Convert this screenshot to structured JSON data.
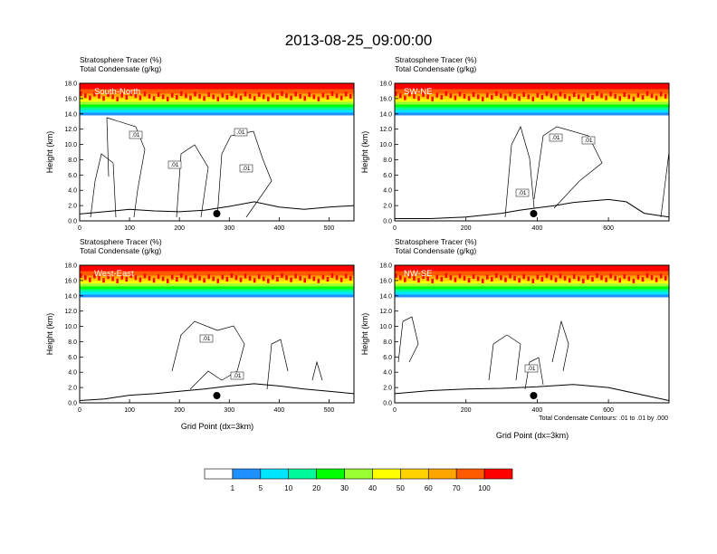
{
  "figure_title": "2013-08-25_09:00:00",
  "header_line1": "Stratosphere Tracer   (%)",
  "header_line2": "Total Condensate   (g/kg)",
  "x_axis_title": "Grid Point (dx=3km)",
  "contour_note": "Total Condensate Contours: .01 to .01 by .000",
  "colors": {
    "level_colors": [
      "#ffffff",
      "#1e90ff",
      "#00e5ff",
      "#00fa9a",
      "#00ff00",
      "#9aff33",
      "#ffff00",
      "#ffd200",
      "#ffa500",
      "#ff5a00",
      "#ff0000"
    ],
    "terrain_line": "#000000"
  },
  "colorbar": {
    "labels": [
      "1",
      "5",
      "10",
      "20",
      "30",
      "40",
      "50",
      "60",
      "70",
      "100"
    ]
  },
  "chart_data": [
    {
      "type": "heatmap",
      "panel": "South-North",
      "ylabel": "Height (km)",
      "xlim": [
        0,
        550
      ],
      "ylim": [
        0,
        18
      ],
      "xticks": [
        0,
        100,
        200,
        300,
        400,
        500
      ],
      "yticks": [
        0.0,
        2.0,
        4.0,
        6.0,
        8.0,
        10.0,
        12.0,
        14.0,
        16.0,
        18.0
      ],
      "ytick_labels": [
        "0.0",
        "2.0",
        "4.0",
        "6.0",
        "8.0",
        "10.0",
        "12.0",
        "14.0",
        "16.0",
        "18.0"
      ],
      "tracer_base_km": 13.8,
      "marker_x": 275,
      "contour_labels": [
        ".01",
        ".01",
        ".01",
        ".01"
      ],
      "terrain_x": [
        0,
        50,
        100,
        150,
        200,
        250,
        300,
        350,
        400,
        450,
        500,
        550
      ],
      "terrain_km": [
        0.9,
        1.2,
        1.5,
        1.3,
        1.2,
        1.4,
        1.9,
        2.5,
        1.8,
        1.5,
        1.8,
        2.0
      ]
    },
    {
      "type": "heatmap",
      "panel": "SW-NE",
      "ylabel": "Height (km)",
      "xlim": [
        0,
        770
      ],
      "ylim": [
        0,
        18
      ],
      "xticks": [
        0,
        200,
        400,
        600
      ],
      "yticks": [
        0.0,
        2.0,
        4.0,
        6.0,
        8.0,
        10.0,
        12.0,
        14.0,
        16.0,
        18.0
      ],
      "ytick_labels": [
        "0.0",
        "2.0",
        "4.0",
        "6.0",
        "8.0",
        "10.0",
        "12.0",
        "14.0",
        "16.0",
        "18.0"
      ],
      "tracer_base_km": 13.8,
      "marker_x": 390,
      "contour_labels": [
        ".01",
        ".01",
        ".01"
      ],
      "terrain_x": [
        0,
        100,
        200,
        300,
        350,
        400,
        450,
        500,
        550,
        600,
        650,
        700,
        770
      ],
      "terrain_km": [
        0.3,
        0.3,
        0.5,
        1.0,
        1.4,
        1.7,
        2.0,
        2.4,
        2.6,
        2.8,
        2.5,
        1.0,
        0.5
      ]
    },
    {
      "type": "heatmap",
      "panel": "West-East",
      "ylabel": "Height (km)",
      "xlim": [
        0,
        550
      ],
      "ylim": [
        0,
        18
      ],
      "xticks": [
        0,
        100,
        200,
        300,
        400,
        500
      ],
      "yticks": [
        0.0,
        2.0,
        4.0,
        6.0,
        8.0,
        10.0,
        12.0,
        14.0,
        16.0,
        18.0
      ],
      "ytick_labels": [
        "0.0",
        "2.0",
        "4.0",
        "6.0",
        "8.0",
        "10.0",
        "12.0",
        "14.0",
        "16.0",
        "18.0"
      ],
      "tracer_base_km": 13.8,
      "marker_x": 275,
      "contour_labels": [
        ".01",
        ".01"
      ],
      "terrain_x": [
        0,
        50,
        100,
        150,
        200,
        250,
        300,
        350,
        400,
        450,
        500,
        550
      ],
      "terrain_km": [
        0.3,
        0.5,
        1.0,
        1.2,
        1.5,
        1.8,
        2.2,
        2.5,
        2.2,
        1.8,
        1.5,
        1.2
      ]
    },
    {
      "type": "heatmap",
      "panel": "NW-SE",
      "ylabel": "Height (km)",
      "xlim": [
        0,
        770
      ],
      "ylim": [
        0,
        18
      ],
      "xticks": [
        0,
        200,
        400,
        600
      ],
      "yticks": [
        0.0,
        2.0,
        4.0,
        6.0,
        8.0,
        10.0,
        12.0,
        14.0,
        16.0,
        18.0
      ],
      "ytick_labels": [
        "0.0",
        "2.0",
        "4.0",
        "6.0",
        "8.0",
        "10.0",
        "12.0",
        "14.0",
        "16.0",
        "18.0"
      ],
      "tracer_base_km": 13.8,
      "marker_x": 390,
      "contour_labels": [
        ".01"
      ],
      "terrain_x": [
        0,
        100,
        200,
        300,
        400,
        500,
        600,
        700,
        770
      ],
      "terrain_km": [
        1.2,
        1.6,
        1.8,
        1.9,
        2.1,
        2.4,
        2.0,
        1.0,
        0.3
      ]
    }
  ]
}
